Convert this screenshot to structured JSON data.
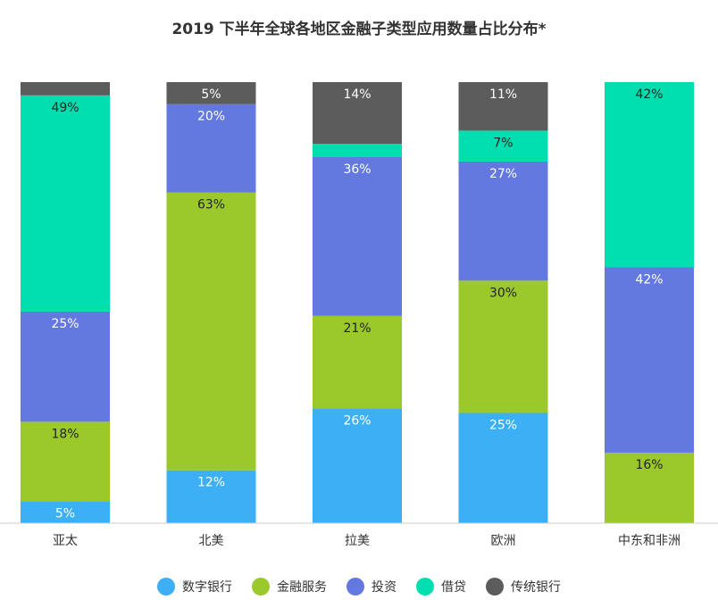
{
  "chart_data": {
    "type": "bar",
    "stacked": true,
    "title": "2019 下半年全球各地区金融子类型应用数量占比分布*",
    "categories": [
      "亚太",
      "北美",
      "拉美",
      "欧洲",
      "中东和非洲"
    ],
    "series": [
      {
        "name": "数字银行",
        "color": "#3daff5",
        "values": [
          5,
          12,
          26,
          25,
          0
        ]
      },
      {
        "name": "金融服务",
        "color": "#9bc92c",
        "values": [
          18,
          63,
          21,
          30,
          16
        ]
      },
      {
        "name": "投资",
        "color": "#6479e0",
        "values": [
          25,
          20,
          36,
          27,
          42
        ]
      },
      {
        "name": "借贷",
        "color": "#00deb0",
        "values": [
          49,
          0,
          3,
          7,
          42
        ]
      },
      {
        "name": "传统银行",
        "color": "#5c5c5c",
        "values": [
          3,
          5,
          14,
          11,
          0
        ]
      }
    ],
    "data_labels": [
      [
        "5%",
        "18%",
        "25%",
        "49%",
        ""
      ],
      [
        "12%",
        "63%",
        "20%",
        "",
        "5%"
      ],
      [
        "26%",
        "21%",
        "36%",
        "",
        "14%"
      ],
      [
        "25%",
        "30%",
        "27%",
        "7%",
        "11%"
      ],
      [
        "",
        "16%",
        "42%",
        "42%",
        ""
      ]
    ],
    "ylim": [
      0,
      100
    ],
    "legend_position": "bottom",
    "grid": false
  }
}
